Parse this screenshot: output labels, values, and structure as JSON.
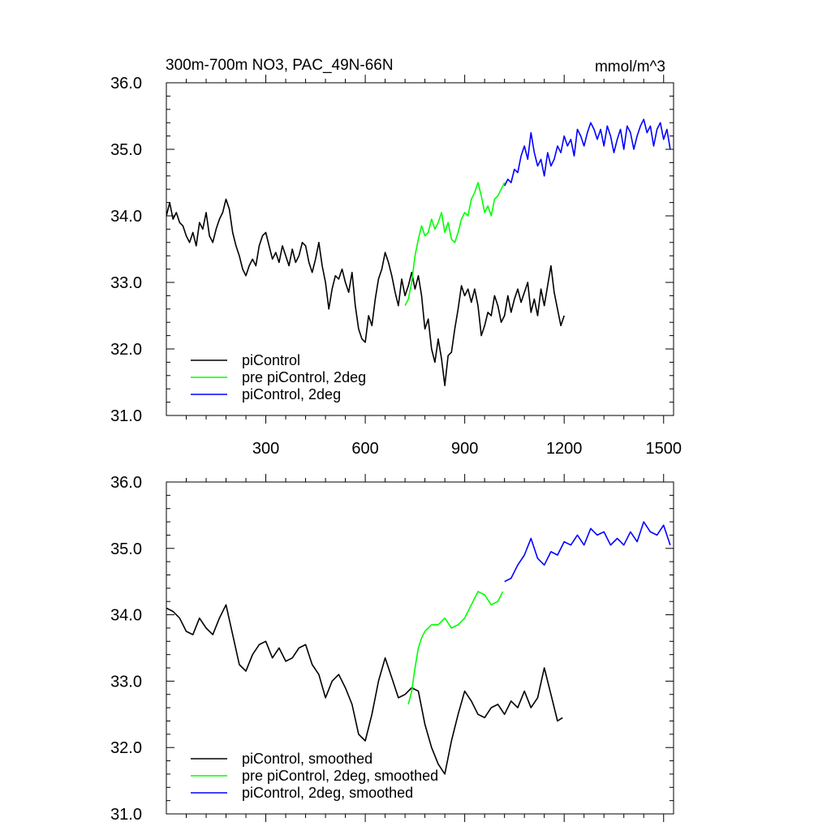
{
  "chart_data": [
    {
      "type": "line",
      "title": "300m-700m NO3, PAC_49N-66N",
      "units": "mmol/m^3",
      "xlim": [
        0,
        1530
      ],
      "ylim": [
        31.0,
        36.0
      ],
      "x_ticks": [
        300,
        600,
        900,
        1200,
        1500
      ],
      "x_tick_labels": [
        "300",
        "600",
        "900",
        "1200",
        "1500"
      ],
      "y_ticks": [
        31.0,
        32.0,
        33.0,
        34.0,
        35.0,
        36.0
      ],
      "y_tick_labels": [
        "31.0",
        "32.0",
        "33.0",
        "34.0",
        "35.0",
        "36.0"
      ],
      "legend_position": "lower-left",
      "series": [
        {
          "name": "piControl",
          "color": "#000000",
          "x": [
            0,
            10,
            20,
            30,
            40,
            50,
            60,
            70,
            80,
            90,
            100,
            110,
            120,
            130,
            140,
            150,
            160,
            170,
            180,
            190,
            200,
            210,
            220,
            230,
            240,
            250,
            260,
            270,
            280,
            290,
            300,
            310,
            320,
            330,
            340,
            350,
            360,
            370,
            380,
            390,
            400,
            410,
            420,
            430,
            440,
            450,
            460,
            470,
            480,
            490,
            500,
            510,
            520,
            530,
            540,
            550,
            560,
            570,
            580,
            590,
            600,
            610,
            620,
            630,
            640,
            650,
            660,
            670,
            680,
            690,
            700,
            710,
            720,
            730,
            740,
            750,
            760,
            770,
            780,
            790,
            800,
            810,
            820,
            830,
            840,
            850,
            860,
            870,
            880,
            890,
            900,
            910,
            920,
            930,
            940,
            950,
            960,
            970,
            980,
            990,
            1000,
            1010,
            1020,
            1030,
            1040,
            1050,
            1060,
            1070,
            1080,
            1090,
            1100,
            1110,
            1120,
            1130,
            1140,
            1150,
            1160,
            1170,
            1180,
            1190,
            1200
          ],
          "y": [
            34.0,
            34.2,
            33.95,
            34.05,
            33.9,
            33.85,
            33.7,
            33.6,
            33.75,
            33.55,
            33.9,
            33.8,
            34.05,
            33.7,
            33.6,
            33.8,
            33.95,
            34.05,
            34.25,
            34.1,
            33.75,
            33.55,
            33.4,
            33.2,
            33.1,
            33.25,
            33.35,
            33.25,
            33.55,
            33.7,
            33.75,
            33.55,
            33.35,
            33.45,
            33.3,
            33.55,
            33.4,
            33.25,
            33.5,
            33.3,
            33.4,
            33.6,
            33.55,
            33.3,
            33.15,
            33.35,
            33.6,
            33.25,
            33.0,
            32.6,
            32.9,
            33.1,
            33.05,
            33.2,
            33.0,
            32.85,
            33.15,
            32.65,
            32.3,
            32.15,
            32.1,
            32.5,
            32.35,
            32.75,
            33.05,
            33.2,
            33.45,
            33.3,
            33.1,
            32.85,
            32.65,
            33.05,
            32.8,
            32.95,
            33.15,
            32.9,
            33.1,
            32.8,
            32.3,
            32.45,
            32.0,
            31.8,
            32.15,
            31.85,
            31.45,
            31.9,
            31.95,
            32.3,
            32.6,
            32.95,
            32.8,
            32.9,
            32.7,
            32.9,
            32.65,
            32.2,
            32.35,
            32.55,
            32.5,
            32.8,
            32.65,
            32.4,
            32.5,
            32.8,
            32.55,
            32.75,
            32.9,
            32.7,
            32.85,
            33.0,
            32.55,
            32.75,
            32.5,
            32.9,
            32.65,
            32.95,
            33.25,
            32.85,
            32.6,
            32.35,
            32.5
          ]
        },
        {
          "name": "pre piControl, 2deg",
          "color": "#00ff00",
          "x": [
            720,
            730,
            740,
            750,
            760,
            770,
            780,
            790,
            800,
            810,
            820,
            830,
            840,
            850,
            860,
            870,
            880,
            890,
            900,
            910,
            920,
            930,
            940,
            950,
            960,
            970,
            980,
            990,
            1000,
            1010,
            1020
          ],
          "y": [
            32.65,
            32.75,
            33.0,
            33.4,
            33.65,
            33.85,
            33.7,
            33.75,
            33.95,
            33.8,
            33.9,
            34.05,
            33.75,
            33.9,
            33.65,
            33.6,
            33.75,
            33.95,
            34.05,
            34.0,
            34.25,
            34.35,
            34.5,
            34.3,
            34.05,
            34.15,
            34.0,
            34.25,
            34.3,
            34.4,
            34.5
          ]
        },
        {
          "name": "piControl, 2deg",
          "color": "#0000ff",
          "x": [
            1020,
            1030,
            1040,
            1050,
            1060,
            1070,
            1080,
            1090,
            1100,
            1110,
            1120,
            1130,
            1140,
            1150,
            1160,
            1170,
            1180,
            1190,
            1200,
            1210,
            1220,
            1230,
            1240,
            1250,
            1260,
            1270,
            1280,
            1290,
            1300,
            1310,
            1320,
            1330,
            1340,
            1350,
            1360,
            1370,
            1380,
            1390,
            1400,
            1410,
            1420,
            1430,
            1440,
            1450,
            1460,
            1470,
            1480,
            1490,
            1500,
            1510,
            1520
          ],
          "y": [
            34.45,
            34.55,
            34.5,
            34.7,
            34.65,
            34.9,
            35.05,
            34.85,
            35.25,
            34.95,
            34.75,
            34.85,
            34.6,
            34.95,
            34.75,
            34.85,
            35.05,
            34.95,
            35.2,
            35.05,
            35.15,
            34.9,
            35.3,
            35.2,
            35.05,
            35.25,
            35.4,
            35.3,
            35.15,
            35.3,
            35.05,
            35.35,
            35.2,
            34.95,
            35.15,
            35.3,
            35.0,
            35.35,
            35.25,
            35.0,
            35.2,
            35.35,
            35.45,
            35.25,
            35.35,
            35.05,
            35.3,
            35.4,
            35.15,
            35.3,
            35.0
          ]
        }
      ]
    },
    {
      "type": "line",
      "xlim": [
        0,
        1530
      ],
      "ylim": [
        31.0,
        36.0
      ],
      "x_ticks": [
        300,
        600,
        900,
        1200,
        1500
      ],
      "y_ticks": [
        31.0,
        32.0,
        33.0,
        34.0,
        35.0,
        36.0
      ],
      "y_tick_labels": [
        "31.0",
        "32.0",
        "33.0",
        "34.0",
        "35.0",
        "36.0"
      ],
      "legend_position": "lower-left",
      "series": [
        {
          "name": "piControl, smoothed",
          "color": "#000000",
          "x": [
            0,
            20,
            40,
            60,
            80,
            100,
            120,
            140,
            160,
            180,
            200,
            220,
            240,
            260,
            280,
            300,
            320,
            340,
            360,
            380,
            400,
            420,
            440,
            460,
            480,
            500,
            520,
            540,
            560,
            580,
            600,
            620,
            640,
            660,
            680,
            700,
            720,
            740,
            760,
            780,
            800,
            820,
            840,
            860,
            880,
            900,
            920,
            940,
            960,
            980,
            1000,
            1020,
            1040,
            1060,
            1080,
            1100,
            1120,
            1140,
            1160,
            1180,
            1195
          ],
          "y": [
            34.1,
            34.05,
            33.95,
            33.75,
            33.7,
            33.95,
            33.8,
            33.7,
            33.95,
            34.15,
            33.7,
            33.25,
            33.15,
            33.4,
            33.55,
            33.6,
            33.35,
            33.5,
            33.3,
            33.35,
            33.5,
            33.55,
            33.25,
            33.1,
            32.75,
            33.0,
            33.1,
            32.9,
            32.65,
            32.2,
            32.1,
            32.5,
            33.0,
            33.35,
            33.05,
            32.75,
            32.8,
            32.9,
            32.85,
            32.35,
            32.0,
            31.75,
            31.6,
            32.1,
            32.5,
            32.85,
            32.7,
            32.5,
            32.45,
            32.6,
            32.65,
            32.5,
            32.7,
            32.6,
            32.85,
            32.6,
            32.75,
            33.2,
            32.8,
            32.4,
            32.45
          ]
        },
        {
          "name": "pre piControl, 2deg, smoothed",
          "color": "#00ff00",
          "x": [
            730,
            740,
            750,
            760,
            770,
            780,
            800,
            820,
            840,
            860,
            880,
            900,
            920,
            940,
            960,
            980,
            1000,
            1015
          ],
          "y": [
            32.65,
            32.85,
            33.2,
            33.5,
            33.65,
            33.75,
            33.85,
            33.85,
            33.95,
            33.8,
            33.85,
            33.95,
            34.15,
            34.35,
            34.3,
            34.15,
            34.2,
            34.35
          ]
        },
        {
          "name": "piControl, 2deg, smoothed",
          "color": "#0000ff",
          "x": [
            1020,
            1040,
            1060,
            1080,
            1100,
            1120,
            1140,
            1160,
            1180,
            1200,
            1220,
            1240,
            1260,
            1280,
            1300,
            1320,
            1340,
            1360,
            1380,
            1400,
            1420,
            1440,
            1460,
            1480,
            1500,
            1520
          ],
          "y": [
            34.5,
            34.55,
            34.75,
            34.9,
            35.15,
            34.85,
            34.75,
            34.95,
            34.9,
            35.1,
            35.05,
            35.2,
            35.05,
            35.3,
            35.2,
            35.25,
            35.05,
            35.15,
            35.05,
            35.25,
            35.1,
            35.4,
            35.25,
            35.2,
            35.35,
            35.05
          ]
        }
      ]
    }
  ]
}
